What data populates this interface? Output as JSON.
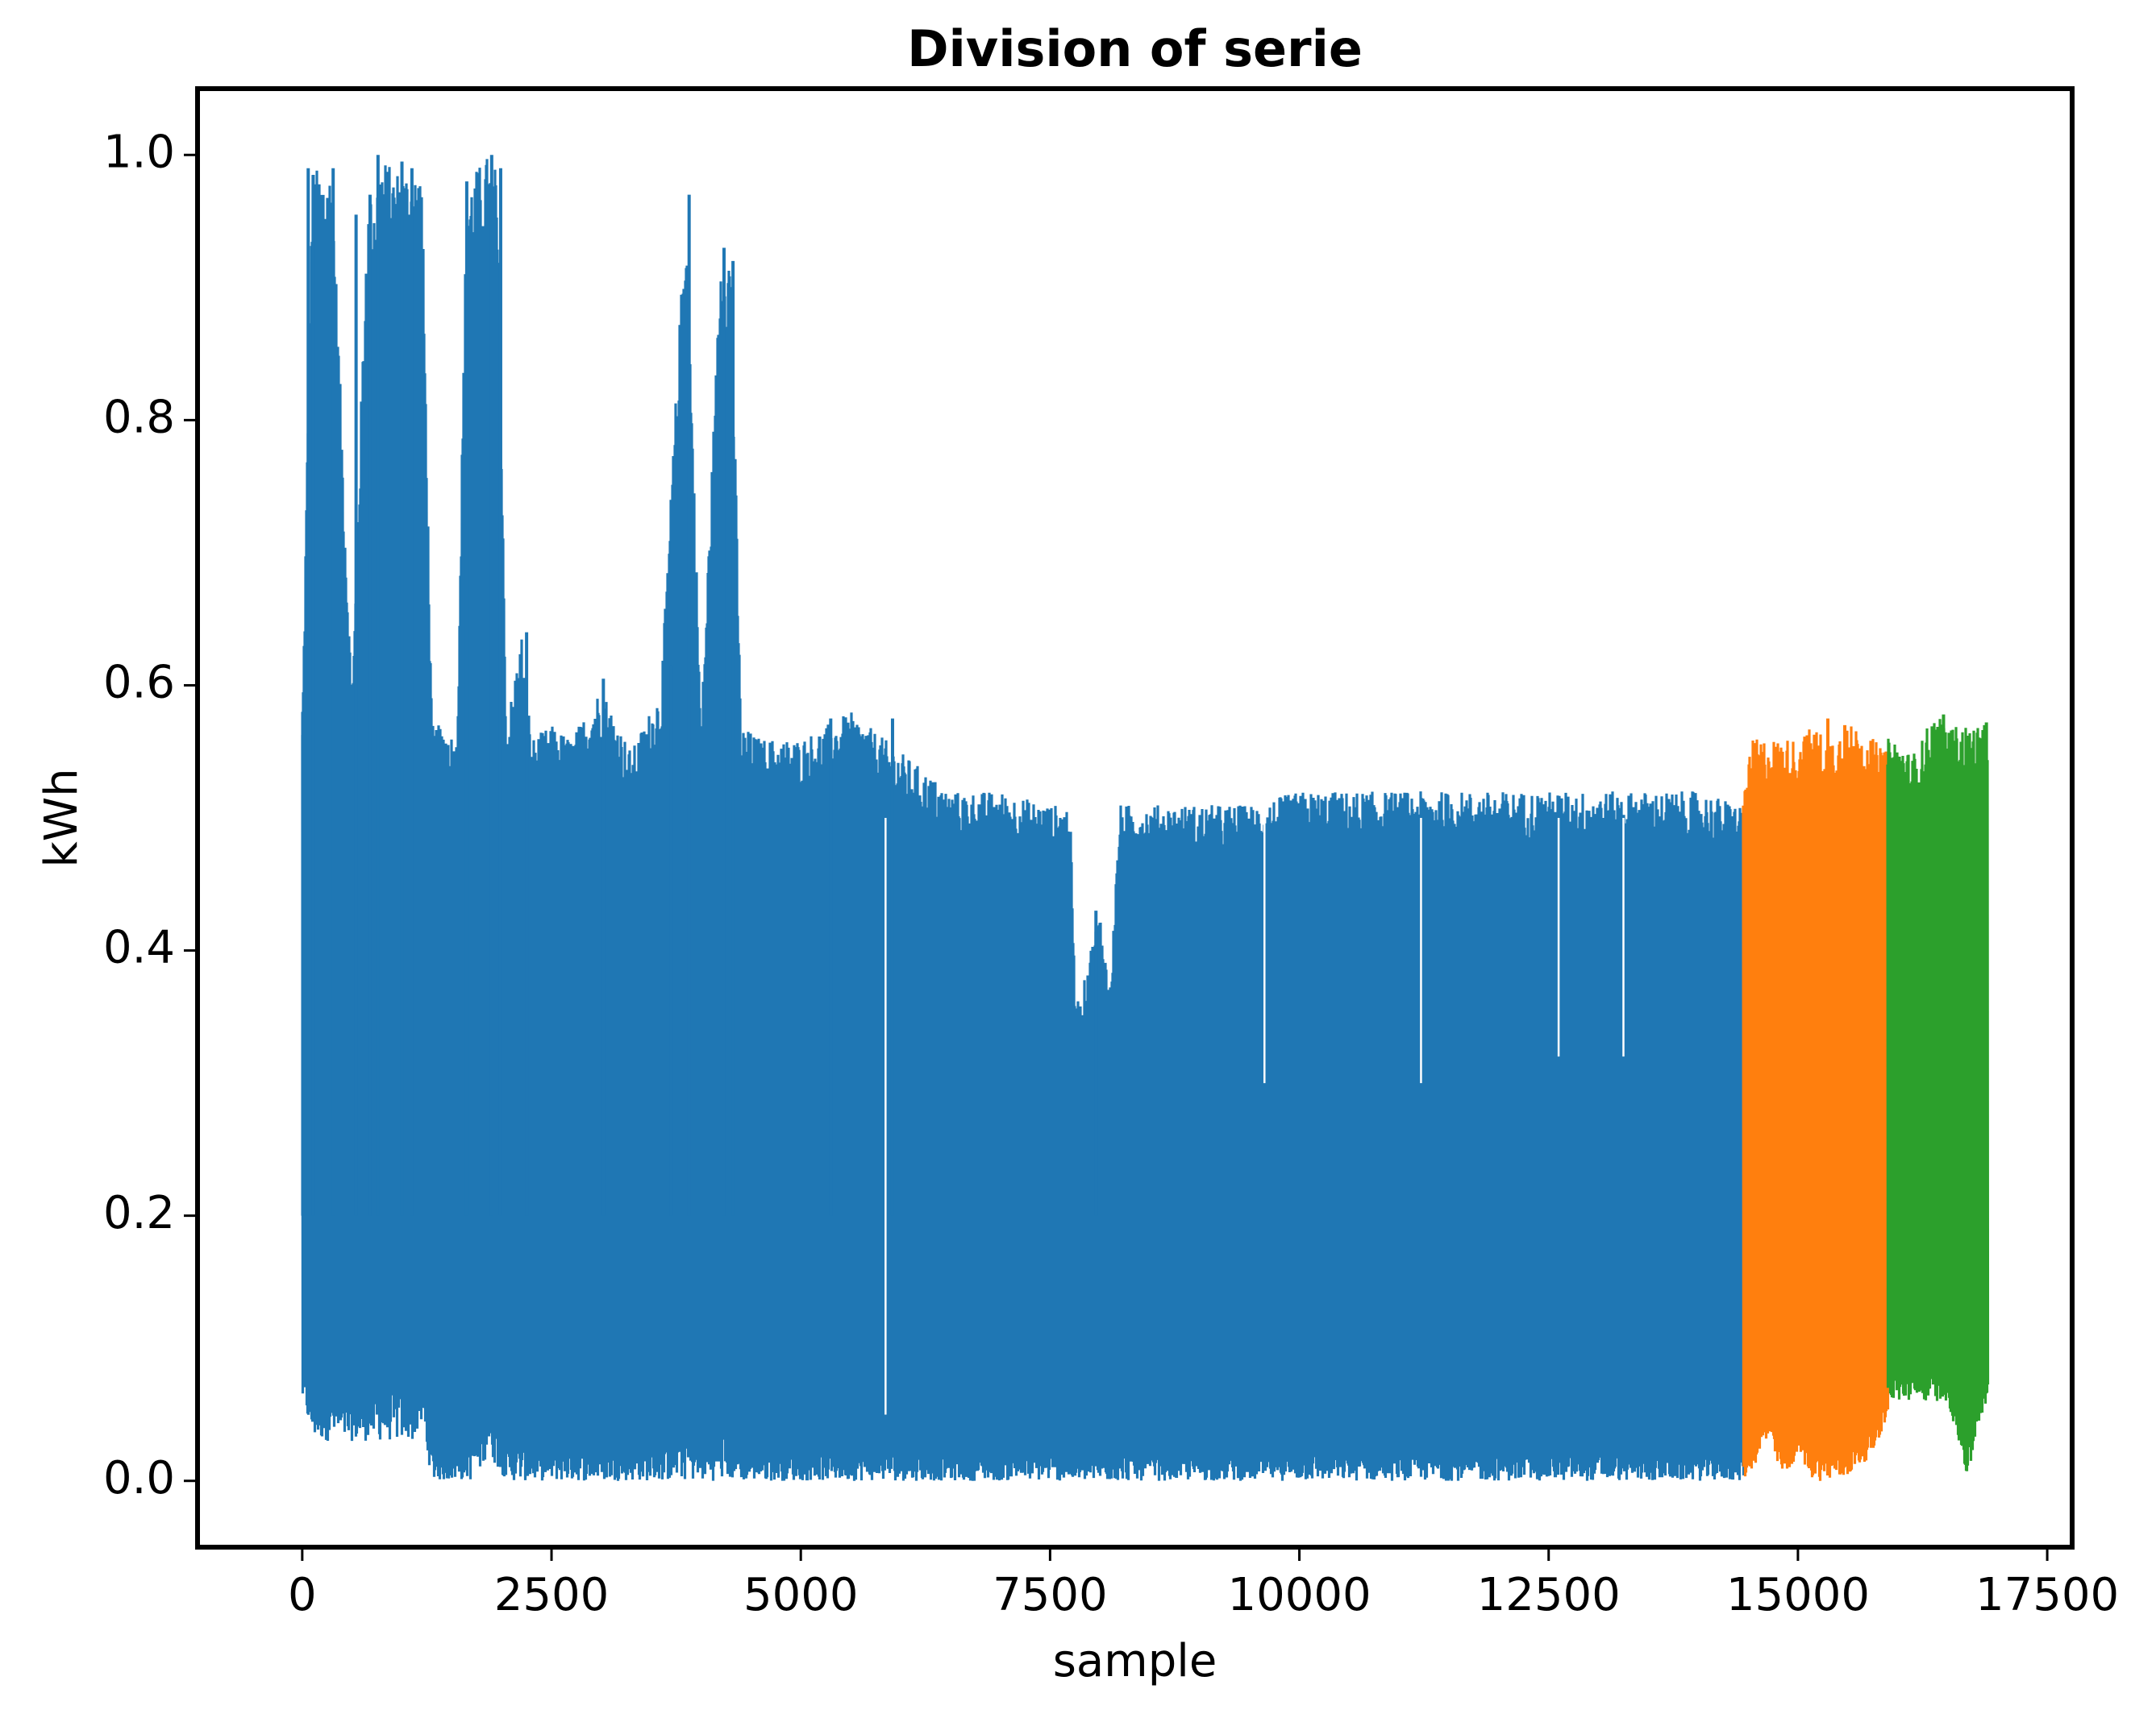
{
  "chart_data": {
    "type": "line",
    "title": "Division of serie",
    "xlabel": "sample",
    "ylabel": "kWh",
    "xlim": [
      -1050,
      17750
    ],
    "ylim": [
      -0.05,
      1.05
    ],
    "xticks": [
      0,
      2500,
      5000,
      7500,
      10000,
      12500,
      15000,
      17500
    ],
    "xtick_labels": [
      "0",
      "2500",
      "5000",
      "7500",
      "10000",
      "12500",
      "15000",
      "17500"
    ],
    "yticks": [
      0.0,
      0.2,
      0.4,
      0.6,
      0.8,
      1.0
    ],
    "ytick_labels": [
      "0.0",
      "0.2",
      "0.4",
      "0.6",
      "0.8",
      "1.0"
    ],
    "grid": false,
    "legend": "none",
    "series": [
      {
        "color": "#1f77b4",
        "x_range": [
          0,
          14450
        ],
        "envelope_x": [
          0,
          100,
          300,
          500,
          650,
          700,
          800,
          900,
          1000,
          1100,
          1200,
          1300,
          1450,
          1550,
          1650,
          1750,
          1850,
          1950,
          2050,
          2200,
          2300,
          2500,
          2700,
          3000,
          3300,
          3600,
          3850,
          4000,
          4200,
          4300,
          4400,
          4600,
          5000,
          5500,
          6000,
          6500,
          7000,
          7500,
          7700,
          7750,
          7800,
          7900,
          8000,
          8100,
          8200,
          8300,
          8500,
          9000,
          9500,
          10000,
          10500,
          11000,
          11500,
          12000,
          12500,
          13000,
          13500,
          14000,
          14450
        ],
        "envelope_max": [
          0.57,
          0.99,
          0.99,
          0.59,
          0.96,
          0.97,
          1.0,
          0.99,
          0.99,
          0.99,
          0.99,
          0.57,
          0.57,
          0.56,
          0.98,
          0.99,
          1.0,
          0.99,
          0.57,
          0.64,
          0.56,
          0.57,
          0.56,
          0.6,
          0.55,
          0.6,
          0.97,
          0.57,
          0.93,
          0.93,
          0.57,
          0.56,
          0.56,
          0.58,
          0.55,
          0.52,
          0.52,
          0.51,
          0.51,
          0.37,
          0.36,
          0.4,
          0.43,
          0.37,
          0.51,
          0.51,
          0.51,
          0.51,
          0.51,
          0.52,
          0.52,
          0.52,
          0.52,
          0.52,
          0.52,
          0.52,
          0.52,
          0.52,
          0.51
        ],
        "envelope_min": [
          0.06,
          0.03,
          0.03,
          0.03,
          0.03,
          0.03,
          0.03,
          0.03,
          0.03,
          0.03,
          0.04,
          0.0,
          0.0,
          0.0,
          0.0,
          0.0,
          0.02,
          0.01,
          0.0,
          0.0,
          0.0,
          0.0,
          0.0,
          0.0,
          0.0,
          0.0,
          0.0,
          0.0,
          0.0,
          0.0,
          0.0,
          0.0,
          0.0,
          0.0,
          0.0,
          0.0,
          0.0,
          0.0,
          0.0,
          0.0,
          0.0,
          0.0,
          0.0,
          0.0,
          0.0,
          0.0,
          0.0,
          0.0,
          0.0,
          0.0,
          0.0,
          0.0,
          0.0,
          0.0,
          0.0,
          0.0,
          0.0,
          0.0,
          0.0
        ]
      },
      {
        "color": "#ff7f0e",
        "x_range": [
          14450,
          15900
        ],
        "envelope_x": [
          14450,
          14550,
          14700,
          14850,
          15000,
          15150,
          15300,
          15450,
          15600,
          15750,
          15900
        ],
        "envelope_max": [
          0.52,
          0.56,
          0.56,
          0.56,
          0.56,
          0.57,
          0.56,
          0.57,
          0.57,
          0.56,
          0.55
        ],
        "envelope_min": [
          0.0,
          0.01,
          0.03,
          0.0,
          0.02,
          0.0,
          0.0,
          0.0,
          0.01,
          0.02,
          0.05
        ]
      },
      {
        "color": "#2ca02c",
        "x_range": [
          15900,
          16900
        ],
        "envelope_x": [
          15900,
          16000,
          16100,
          16200,
          16300,
          16400,
          16500,
          16600,
          16700,
          16800,
          16900
        ],
        "envelope_max": [
          0.56,
          0.56,
          0.55,
          0.55,
          0.57,
          0.58,
          0.57,
          0.57,
          0.57,
          0.57,
          0.57
        ],
        "envelope_min": [
          0.06,
          0.06,
          0.06,
          0.06,
          0.06,
          0.06,
          0.06,
          0.03,
          0.0,
          0.04,
          0.06
        ]
      }
    ],
    "spikes": [
      {
        "x": 5,
        "y": 0.58,
        "series": 0
      },
      {
        "x": 60,
        "y": 0.99,
        "series": 0
      },
      {
        "x": 110,
        "y": 0.985,
        "series": 0
      },
      {
        "x": 310,
        "y": 0.99,
        "series": 0
      },
      {
        "x": 540,
        "y": 0.955,
        "series": 0
      },
      {
        "x": 680,
        "y": 0.97,
        "series": 0
      },
      {
        "x": 760,
        "y": 1.0,
        "series": 0
      },
      {
        "x": 1000,
        "y": 0.995,
        "series": 0
      },
      {
        "x": 1100,
        "y": 0.99,
        "series": 0
      },
      {
        "x": 1650,
        "y": 0.98,
        "series": 0
      },
      {
        "x": 1900,
        "y": 1.0,
        "series": 0
      },
      {
        "x": 1990,
        "y": 0.99,
        "series": 0
      },
      {
        "x": 2250,
        "y": 0.64,
        "series": 0
      },
      {
        "x": 3020,
        "y": 0.605,
        "series": 0
      },
      {
        "x": 3700,
        "y": 0.615,
        "series": 0
      },
      {
        "x": 3880,
        "y": 0.97,
        "series": 0
      },
      {
        "x": 4230,
        "y": 0.93,
        "series": 0
      },
      {
        "x": 4320,
        "y": 0.92,
        "series": 0
      },
      {
        "x": 5300,
        "y": 0.575,
        "series": 0
      },
      {
        "x": 5920,
        "y": 0.575,
        "series": 0
      },
      {
        "x": 7960,
        "y": 0.43,
        "series": 0
      },
      {
        "x": 15300,
        "y": 0.575,
        "series": 1
      },
      {
        "x": 15470,
        "y": 0.57,
        "series": 1
      },
      {
        "x": 16460,
        "y": 0.578,
        "series": 2
      },
      {
        "x": 16890,
        "y": 0.572,
        "series": 2
      }
    ],
    "dips": [
      {
        "x": 5850,
        "y": 0.05,
        "series": 0
      },
      {
        "x": 9650,
        "y": 0.3,
        "series": 0
      },
      {
        "x": 11220,
        "y": 0.3,
        "series": 0
      },
      {
        "x": 12600,
        "y": 0.32,
        "series": 0
      },
      {
        "x": 13250,
        "y": 0.32,
        "series": 0
      }
    ]
  }
}
